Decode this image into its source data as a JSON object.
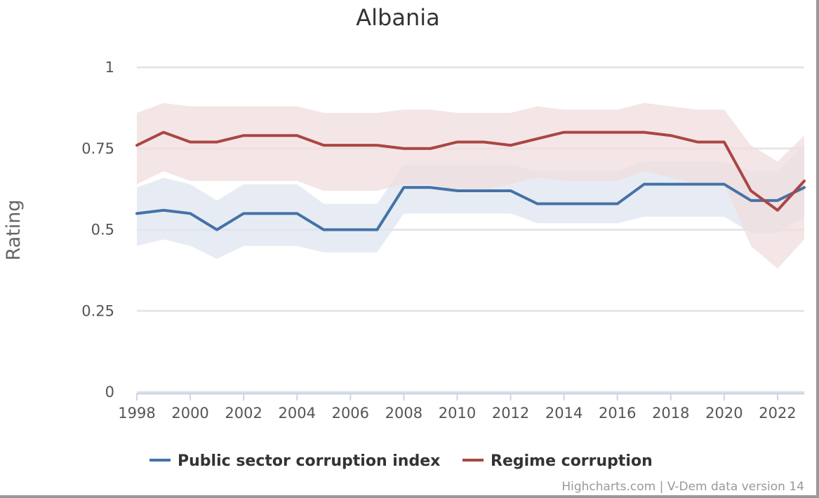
{
  "chart_data": {
    "type": "line",
    "title": "Albania",
    "ylabel": "Rating",
    "xlabel": "",
    "ylim": [
      0,
      1
    ],
    "xlim": [
      1998,
      2023
    ],
    "y_ticks": [
      "0",
      "0.25",
      "0.5",
      "0.75",
      "1"
    ],
    "x_ticks": [
      "1998",
      "2000",
      "2002",
      "2004",
      "2006",
      "2008",
      "2010",
      "2012",
      "2014",
      "2016",
      "2018",
      "2020",
      "2022"
    ],
    "grid": true,
    "legend_position": "bottom",
    "x": [
      1998,
      1999,
      2000,
      2001,
      2002,
      2003,
      2004,
      2005,
      2006,
      2007,
      2008,
      2009,
      2010,
      2011,
      2012,
      2013,
      2014,
      2015,
      2016,
      2017,
      2018,
      2019,
      2020,
      2021,
      2022,
      2023
    ],
    "series": [
      {
        "name": "Public sector corruption index",
        "color": "#4572a7",
        "band_color": "#dfe6f0",
        "values": [
          0.55,
          0.56,
          0.55,
          0.5,
          0.55,
          0.55,
          0.55,
          0.5,
          0.5,
          0.5,
          0.63,
          0.63,
          0.62,
          0.62,
          0.62,
          0.58,
          0.58,
          0.58,
          0.58,
          0.64,
          0.64,
          0.64,
          0.64,
          0.59,
          0.59,
          0.63
        ],
        "lower": [
          0.45,
          0.47,
          0.45,
          0.41,
          0.45,
          0.45,
          0.45,
          0.43,
          0.43,
          0.43,
          0.55,
          0.55,
          0.55,
          0.55,
          0.55,
          0.52,
          0.52,
          0.52,
          0.52,
          0.54,
          0.54,
          0.54,
          0.54,
          0.49,
          0.49,
          0.54
        ],
        "upper": [
          0.63,
          0.66,
          0.64,
          0.59,
          0.64,
          0.64,
          0.64,
          0.58,
          0.58,
          0.58,
          0.7,
          0.7,
          0.7,
          0.7,
          0.7,
          0.68,
          0.68,
          0.68,
          0.68,
          0.71,
          0.71,
          0.71,
          0.71,
          0.68,
          0.68,
          0.76
        ]
      },
      {
        "name": "Regime corruption",
        "color": "#aa4643",
        "band_color": "#f0dede",
        "values": [
          0.76,
          0.8,
          0.77,
          0.77,
          0.79,
          0.79,
          0.79,
          0.76,
          0.76,
          0.76,
          0.75,
          0.75,
          0.77,
          0.77,
          0.76,
          0.78,
          0.8,
          0.8,
          0.8,
          0.8,
          0.79,
          0.77,
          0.77,
          0.62,
          0.56,
          0.65
        ],
        "lower": [
          0.64,
          0.68,
          0.65,
          0.65,
          0.65,
          0.65,
          0.65,
          0.62,
          0.62,
          0.62,
          0.64,
          0.64,
          0.62,
          0.62,
          0.64,
          0.66,
          0.65,
          0.65,
          0.65,
          0.68,
          0.66,
          0.64,
          0.64,
          0.45,
          0.38,
          0.47
        ],
        "upper": [
          0.86,
          0.89,
          0.88,
          0.88,
          0.88,
          0.88,
          0.88,
          0.86,
          0.86,
          0.86,
          0.87,
          0.87,
          0.86,
          0.86,
          0.86,
          0.88,
          0.87,
          0.87,
          0.87,
          0.89,
          0.88,
          0.87,
          0.87,
          0.76,
          0.71,
          0.79
        ]
      }
    ],
    "credits": "Highcharts.com | V-Dem data version 14"
  }
}
